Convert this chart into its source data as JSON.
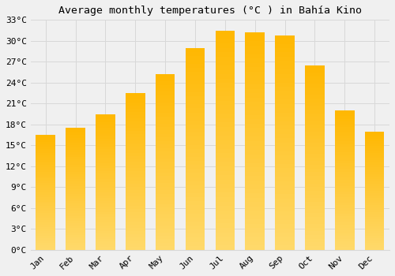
{
  "title": "Average monthly temperatures (°C ) in Bahía Kino",
  "months": [
    "Jan",
    "Feb",
    "Mar",
    "Apr",
    "May",
    "Jun",
    "Jul",
    "Aug",
    "Sep",
    "Oct",
    "Nov",
    "Dec"
  ],
  "values": [
    16.5,
    17.5,
    19.5,
    22.5,
    25.2,
    29.0,
    31.5,
    31.2,
    30.8,
    26.5,
    20.0,
    17.0
  ],
  "bar_color_top": "#FFB700",
  "bar_color_bot": "#FFD96A",
  "ylim": [
    0,
    33
  ],
  "yticks": [
    0,
    3,
    6,
    9,
    12,
    15,
    18,
    21,
    24,
    27,
    30,
    33
  ],
  "ytick_labels": [
    "0°C",
    "3°C",
    "6°C",
    "9°C",
    "12°C",
    "15°C",
    "18°C",
    "21°C",
    "24°C",
    "27°C",
    "30°C",
    "33°C"
  ],
  "bg_color": "#f0f0f0",
  "grid_color": "#d8d8d8",
  "title_fontsize": 9.5,
  "tick_fontsize": 8,
  "bar_width": 0.65
}
